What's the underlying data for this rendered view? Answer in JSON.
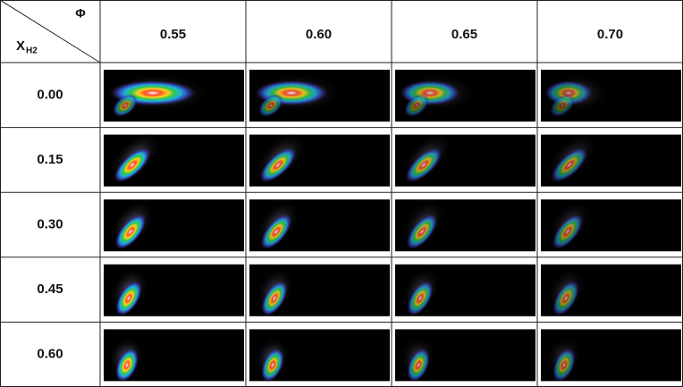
{
  "corner": {
    "column_label": "Φ",
    "row_label": "X",
    "row_label_sub": "H2"
  },
  "table": {
    "columns": [
      "0.55",
      "0.60",
      "0.65",
      "0.70"
    ],
    "rows": [
      "0.00",
      "0.15",
      "0.30",
      "0.45",
      "0.60"
    ]
  }
}
